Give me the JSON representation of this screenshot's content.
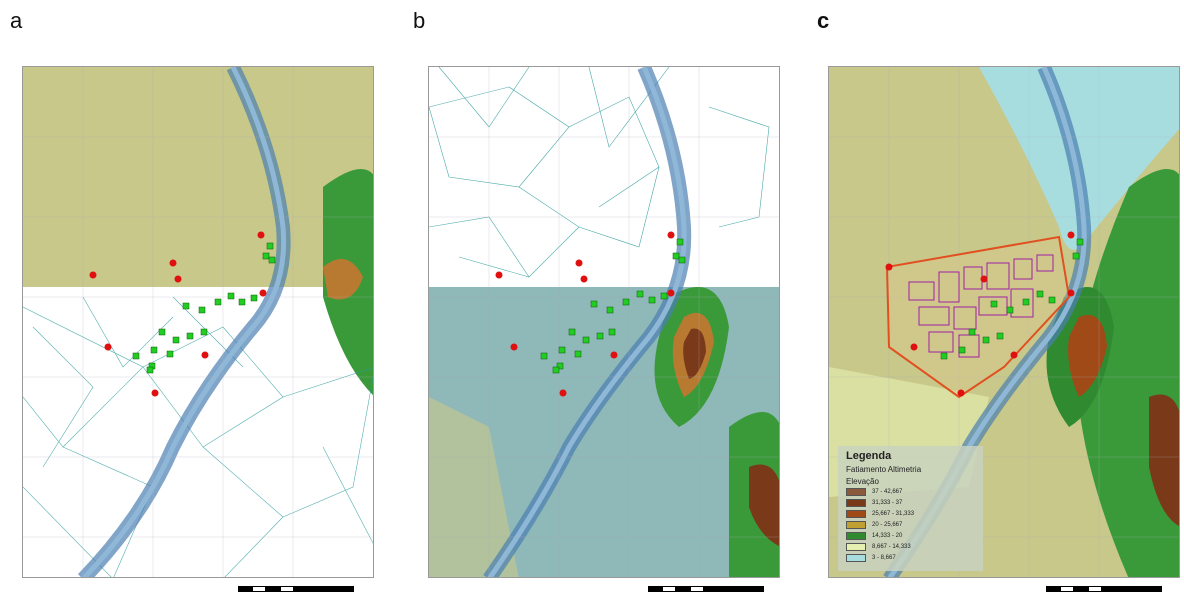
{
  "labels": {
    "a": "a",
    "b": "b",
    "c": "c"
  },
  "legend": {
    "title": "Legenda",
    "subtitle": "Fatiamento Altimetria",
    "field": "Elevação",
    "classes": [
      {
        "label": "37 - 42,667",
        "color": "#8b5a3c"
      },
      {
        "label": "31,333 - 37",
        "color": "#7a3a1a"
      },
      {
        "label": "25,667 - 31,333",
        "color": "#a04a18"
      },
      {
        "label": "20 - 25,667",
        "color": "#c0a030"
      },
      {
        "label": "14,333 - 20",
        "color": "#2f8a30"
      },
      {
        "label": "8,667 - 14,333",
        "color": "#e6f0b0"
      },
      {
        "label": "3 - 8,667",
        "color": "#a8dde0"
      }
    ]
  },
  "colors": {
    "terrain": "#c8c88a",
    "river": "#6a9fc0",
    "tin": "#2a9a9a",
    "red_point": "#e01010",
    "green_point": "#22cc22",
    "site": "#e05020",
    "buildings": "#a020a0"
  }
}
